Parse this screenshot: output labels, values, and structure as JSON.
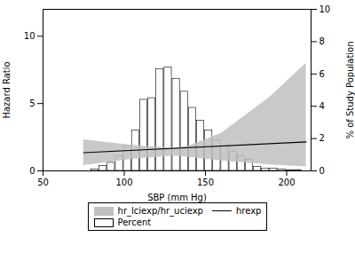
{
  "chart_data": {
    "type": "line",
    "xlabel": "SBP (mm Hg)",
    "ylabel": "Hazard Ratio",
    "y2label": "% of Study Population",
    "xlim": [
      50,
      215
    ],
    "xticks": [
      50,
      100,
      150,
      200
    ],
    "ylim": [
      0,
      12
    ],
    "yticks": [
      0,
      5,
      10
    ],
    "y2lim": [
      0,
      10
    ],
    "y2ticks": [
      0,
      2,
      4,
      6,
      8,
      10
    ],
    "grid": false,
    "legend": "bottom",
    "series": [
      {
        "name": "hr_lciexp/hr_uciexp",
        "type": "area",
        "color": "#c0c0c0",
        "x": [
          75,
          105,
          125,
          130,
          140,
          160,
          190,
          212
        ],
        "lower": [
          0.4,
          0.85,
          1.05,
          1.1,
          1.0,
          0.75,
          0.45,
          0.3
        ],
        "upper": [
          2.3,
          1.9,
          1.72,
          1.68,
          1.85,
          2.8,
          5.5,
          8.0
        ]
      },
      {
        "name": "hrexp",
        "type": "line",
        "color": "#000000",
        "x": [
          75,
          212
        ],
        "values": [
          1.35,
          2.15
        ]
      },
      {
        "name": "Percent",
        "type": "bar",
        "color": "#000000",
        "axis": "y2",
        "x": [
          82,
          87,
          92,
          97,
          102,
          107,
          112,
          117,
          122,
          127,
          132,
          137,
          142,
          147,
          152,
          157,
          162,
          167,
          172,
          177,
          182,
          187,
          192,
          197,
          202,
          207
        ],
        "values": [
          0.1,
          0.3,
          0.5,
          0.9,
          1.5,
          2.5,
          4.4,
          4.5,
          6.3,
          6.4,
          5.7,
          4.9,
          3.9,
          3.1,
          2.5,
          1.9,
          1.5,
          1.2,
          0.9,
          0.7,
          0.25,
          0.15,
          0.15,
          0.1,
          0.05,
          0.05
        ]
      }
    ]
  }
}
